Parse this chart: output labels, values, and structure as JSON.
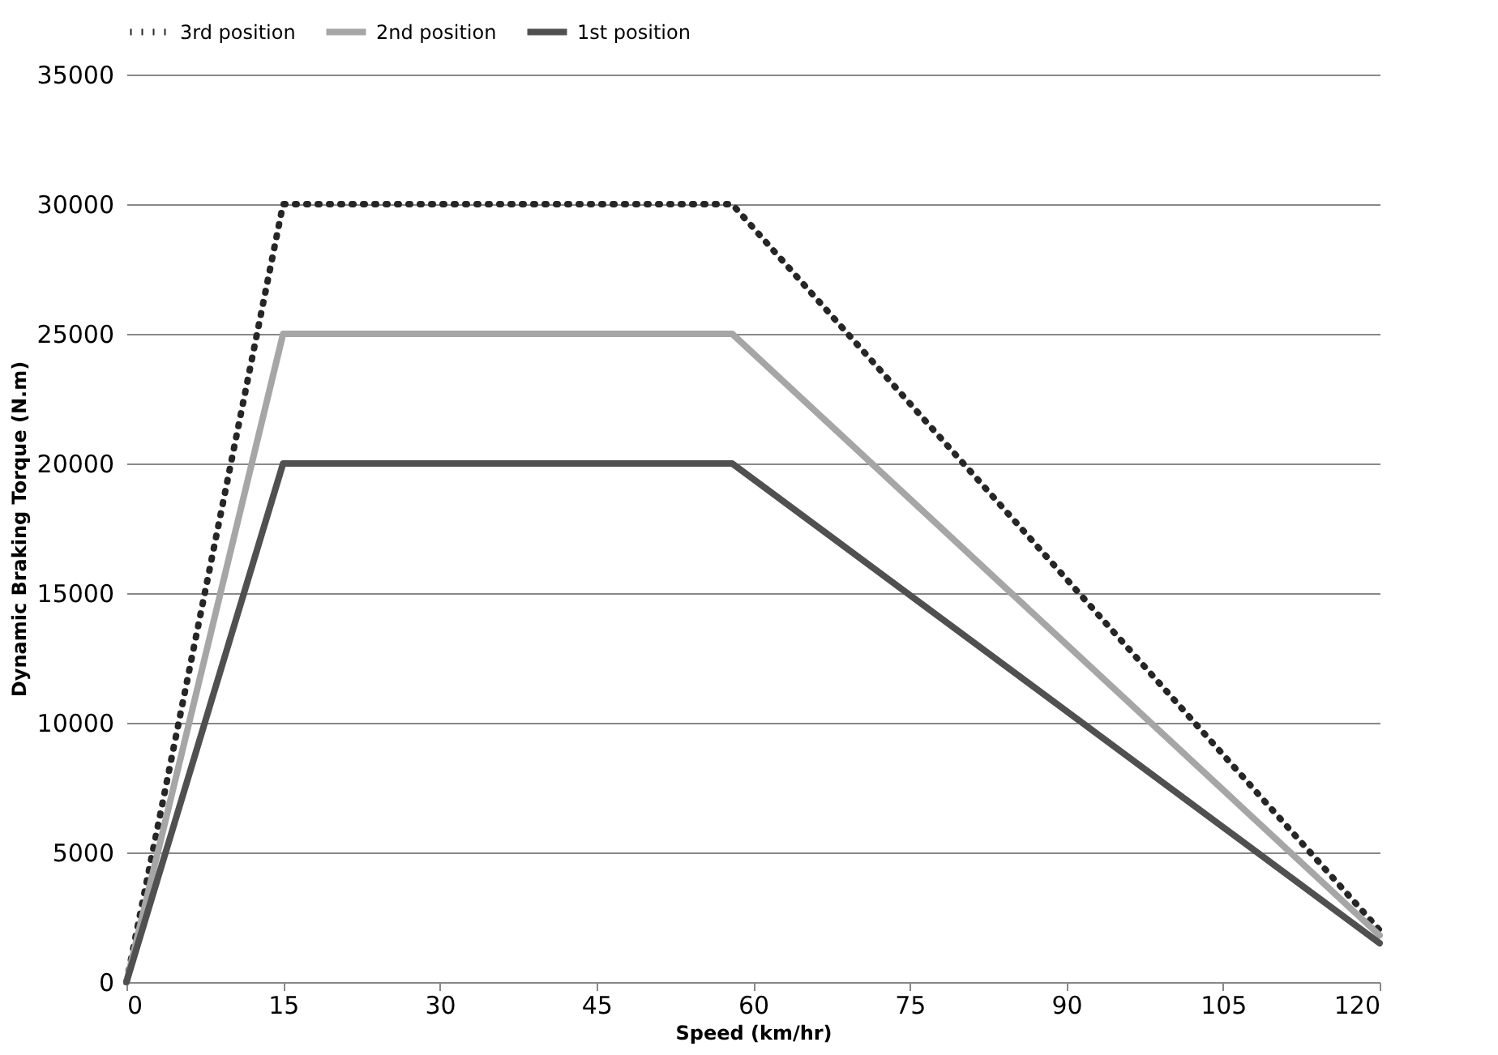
{
  "chart_data": {
    "type": "line",
    "xlabel": "Speed (km/hr)",
    "ylabel": "Dynamic Braking Torque (N.m)",
    "x": [
      0,
      15,
      58,
      120
    ],
    "series": [
      {
        "name": "3rd position",
        "color": "#262626",
        "line_style": "dotted",
        "values": [
          0,
          30000,
          30000,
          2000
        ]
      },
      {
        "name": "2nd position",
        "color": "#a6a6a6",
        "line_style": "solid",
        "values": [
          0,
          25000,
          25000,
          1800
        ]
      },
      {
        "name": "1st position",
        "color": "#505050",
        "line_style": "solid",
        "values": [
          0,
          20000,
          20000,
          1500
        ]
      }
    ],
    "xlim": [
      0,
      120
    ],
    "xticks": [
      0,
      15,
      30,
      45,
      60,
      75,
      90,
      105,
      120
    ],
    "ylim": [
      0,
      35000
    ],
    "yticks": [
      0,
      5000,
      10000,
      15000,
      20000,
      25000,
      30000,
      35000
    ],
    "grid": "y",
    "legend": "top",
    "marker": "none"
  }
}
